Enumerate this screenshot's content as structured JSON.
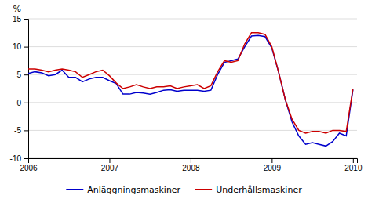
{
  "chart_data": {
    "type": "line",
    "ylabel": "%",
    "x": [
      2006.0,
      2006.083,
      2006.167,
      2006.25,
      2006.333,
      2006.417,
      2006.5,
      2006.583,
      2006.667,
      2006.75,
      2006.833,
      2006.917,
      2007.0,
      2007.083,
      2007.167,
      2007.25,
      2007.333,
      2007.417,
      2007.5,
      2007.583,
      2007.667,
      2007.75,
      2007.833,
      2007.917,
      2008.0,
      2008.083,
      2008.167,
      2008.25,
      2008.333,
      2008.417,
      2008.5,
      2008.583,
      2008.667,
      2008.75,
      2008.833,
      2008.917,
      2009.0,
      2009.083,
      2009.167,
      2009.25,
      2009.333,
      2009.417,
      2009.5,
      2009.583,
      2009.667,
      2009.75,
      2009.833,
      2009.917,
      2010.0
    ],
    "series": [
      {
        "name": "Anläggningsmaskiner",
        "color": "#0000cc",
        "values": [
          5.2,
          5.5,
          5.3,
          4.8,
          5.0,
          5.8,
          4.5,
          4.5,
          3.7,
          4.2,
          4.5,
          4.5,
          3.9,
          3.4,
          1.5,
          1.5,
          1.8,
          1.7,
          1.5,
          1.8,
          2.2,
          2.3,
          2.0,
          2.2,
          2.2,
          2.2,
          2.0,
          2.2,
          5.0,
          7.2,
          7.5,
          7.8,
          10.0,
          11.9,
          12.0,
          11.8,
          9.8,
          5.5,
          0.5,
          -3.5,
          -6.0,
          -7.5,
          -7.2,
          -7.5,
          -7.8,
          -7.0,
          -5.5,
          -6.0,
          2.3
        ]
      },
      {
        "name": "Underhållsmaskiner",
        "color": "#cc0000",
        "values": [
          6.0,
          6.0,
          5.8,
          5.5,
          5.8,
          6.0,
          5.8,
          5.5,
          4.5,
          5.0,
          5.5,
          5.8,
          4.8,
          3.5,
          2.5,
          2.8,
          3.2,
          2.8,
          2.5,
          2.8,
          2.8,
          3.0,
          2.5,
          2.8,
          3.0,
          3.2,
          2.5,
          3.0,
          5.5,
          7.5,
          7.2,
          7.5,
          10.5,
          12.5,
          12.5,
          12.2,
          10.0,
          5.5,
          0.5,
          -3.0,
          -5.0,
          -5.5,
          -5.2,
          -5.2,
          -5.5,
          -5.0,
          -5.0,
          -5.2,
          2.5
        ]
      }
    ],
    "xlim": [
      2006.0,
      2010.05
    ],
    "xticks": [
      2006,
      2007,
      2008,
      2009,
      2010
    ],
    "ylim": [
      -10,
      15
    ],
    "yticks": [
      -10,
      -5,
      0,
      5,
      10,
      15
    ],
    "grid": true,
    "legend": "bottom"
  }
}
